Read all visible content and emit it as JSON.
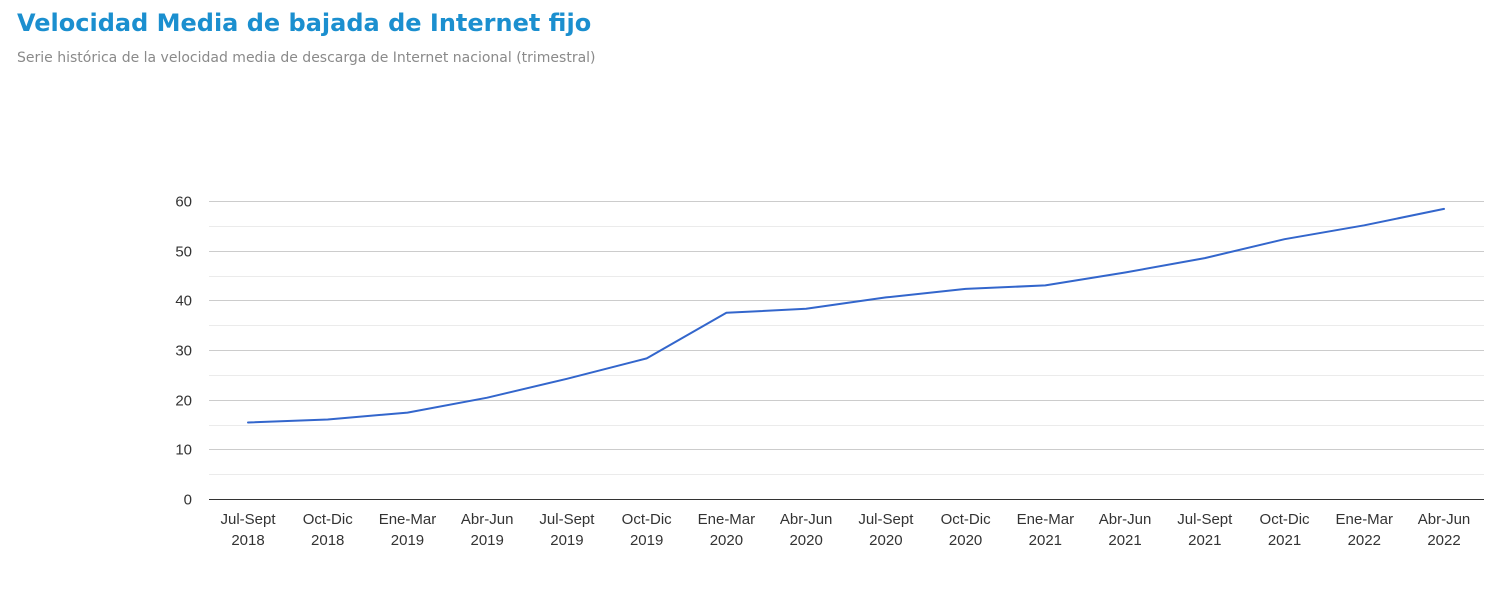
{
  "header": {
    "title": "Velocidad Media de bajada de Internet fijo",
    "subtitle": "Serie histórica de la velocidad media de descarga de Internet nacional (trimestral)"
  },
  "colors": {
    "title": "#1b8fcf",
    "line": "#3366cc",
    "grid_major": "#cccccc",
    "grid_minor": "#ebebeb",
    "axis": "#333333"
  },
  "chart_data": {
    "type": "line",
    "title": "Velocidad Media de bajada de Internet fijo",
    "subtitle": "Serie histórica de la velocidad media de descarga de Internet nacional (trimestral)",
    "xlabel": "",
    "ylabel": "",
    "categories": [
      [
        "Jul-Sept",
        "2018"
      ],
      [
        "Oct-Dic",
        "2018"
      ],
      [
        "Ene-Mar",
        "2019"
      ],
      [
        "Abr-Jun",
        "2019"
      ],
      [
        "Jul-Sept",
        "2019"
      ],
      [
        "Oct-Dic",
        "2019"
      ],
      [
        "Ene-Mar",
        "2020"
      ],
      [
        "Abr-Jun",
        "2020"
      ],
      [
        "Jul-Sept",
        "2020"
      ],
      [
        "Oct-Dic",
        "2020"
      ],
      [
        "Ene-Mar",
        "2021"
      ],
      [
        "Abr-Jun",
        "2021"
      ],
      [
        "Jul-Sept",
        "2021"
      ],
      [
        "Oct-Dic",
        "2021"
      ],
      [
        "Ene-Mar",
        "2022"
      ],
      [
        "Abr-Jun",
        "2022"
      ]
    ],
    "series": [
      {
        "values": [
          15.4,
          16.0,
          17.4,
          20.4,
          24.2,
          28.3,
          37.5,
          38.3,
          40.6,
          42.3,
          43.0,
          45.6,
          48.5,
          52.3,
          55.1,
          58.4
        ]
      }
    ],
    "ylim": [
      0,
      60
    ],
    "yticks": [
      0,
      10,
      20,
      30,
      40,
      50,
      60
    ],
    "grid": true,
    "minor_grid": true,
    "legend": "none"
  }
}
